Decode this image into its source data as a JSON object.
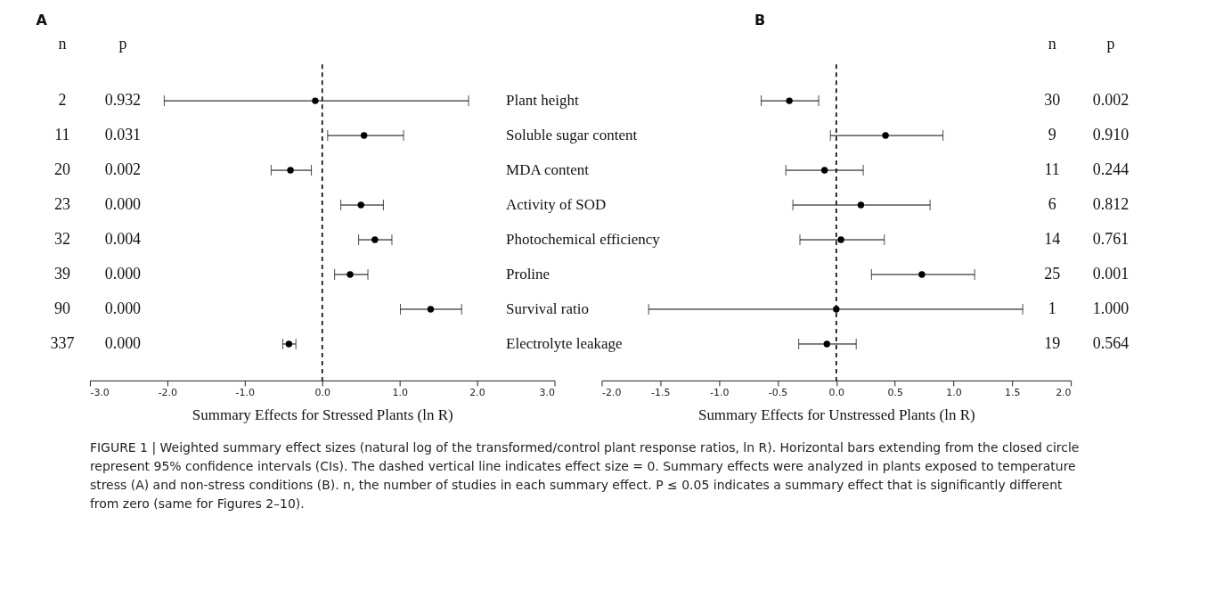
{
  "chart_data": [
    {
      "type": "scatter",
      "title": "A",
      "orientation": "horizontal",
      "marker": "circle",
      "grid": false,
      "categories": [
        "Plant height",
        "Soluble sugar content",
        "MDA content",
        "Activity of SOD",
        "Photochemical efficiency",
        "Proline",
        "Survival ratio",
        "Electrolyte leakage"
      ],
      "series": [
        {
          "color": "#000000",
          "values": [
            -0.09,
            0.54,
            -0.41,
            0.5,
            0.68,
            0.36,
            1.4,
            -0.43
          ],
          "errors": [
            [
              -2.04,
              1.89
            ],
            [
              0.07,
              1.05
            ],
            [
              -0.66,
              -0.14
            ],
            [
              0.24,
              0.79
            ],
            [
              0.47,
              0.9
            ],
            [
              0.16,
              0.59
            ],
            [
              1.01,
              1.8
            ],
            [
              -0.51,
              -0.34
            ]
          ]
        }
      ],
      "xlabel": "Summary Effects for Stressed Plants (ln R)",
      "xlim": [
        -3,
        3
      ],
      "xticks": [
        {
          "value": -3,
          "label": "-3.0"
        },
        {
          "value": -2,
          "label": "-2.0"
        },
        {
          "value": -1,
          "label": "-1.0"
        },
        {
          "value": 0,
          "label": "0.0"
        },
        {
          "value": 1,
          "label": "1.0"
        },
        {
          "value": 2,
          "label": "2.0"
        },
        {
          "value": 3,
          "label": "3.0"
        }
      ],
      "ref_lines": [
        {
          "axis": "x",
          "value": 0,
          "line_style": "dashed",
          "color": "#000000"
        }
      ],
      "annotations": [
        "n",
        "p",
        "2",
        "0.932",
        "11",
        "0.031",
        "20",
        "0.002",
        "23",
        "0.000",
        "32",
        "0.004",
        "39",
        "0.000",
        "90",
        "0.000",
        "337",
        "0.000"
      ]
    },
    {
      "type": "scatter",
      "title": "B",
      "orientation": "horizontal",
      "marker": "circle",
      "grid": false,
      "categories": [
        null,
        null,
        null,
        null,
        null,
        null,
        null,
        null
      ],
      "series": [
        {
          "color": "#000000",
          "values": [
            -0.4,
            0.42,
            -0.1,
            0.21,
            0.04,
            0.73,
            0.0,
            -0.08
          ],
          "errors": [
            [
              -0.64,
              -0.15
            ],
            [
              -0.05,
              0.91
            ],
            [
              -0.43,
              0.23
            ],
            [
              -0.37,
              0.8
            ],
            [
              -0.31,
              0.41
            ],
            [
              0.3,
              1.18
            ],
            [
              -1.6,
              1.59
            ],
            [
              -0.32,
              0.17
            ]
          ]
        }
      ],
      "xlabel": "Summary Effects for Unstressed Plants (ln R)",
      "xlim": [
        -2,
        2
      ],
      "xticks": [
        {
          "value": -2,
          "label": "-2.0"
        },
        {
          "value": -1.5,
          "label": "-1.5"
        },
        {
          "value": -1,
          "label": "-1.0"
        },
        {
          "value": -0.5,
          "label": "-0.5"
        },
        {
          "value": 0,
          "label": "0.0"
        },
        {
          "value": 0.5,
          "label": "0.5"
        },
        {
          "value": 1,
          "label": "1.0"
        },
        {
          "value": 1.5,
          "label": "1.5"
        },
        {
          "value": 2,
          "label": "2.0"
        }
      ],
      "ref_lines": [
        {
          "axis": "x",
          "value": 0,
          "line_style": "dashed",
          "color": "#000000"
        }
      ],
      "annotations": [
        "n",
        "p",
        "30",
        "0.002",
        "9",
        "0.910",
        "11",
        "0.244",
        "6",
        "0.812",
        "14",
        "0.761",
        "25",
        "0.001",
        "1",
        "1.000",
        "19",
        "0.564",
        "FIGURE 1 | Weighted summary effect sizes (natural log of the transformed/control plant response ratios, ln R). Horizontal bars extending from the closed circle represent 95% confidence intervals (CIs). The dashed vertical line indicates effect size = 0. Summary effects were analyzed in plants exposed to temperature stress (A) and non-stress conditions (B). n, the number of studies in each summary effect. P ≤ 0.05 indicates a summary effect that is significantly different from zero (same for Figures 2–10)."
      ]
    }
  ]
}
